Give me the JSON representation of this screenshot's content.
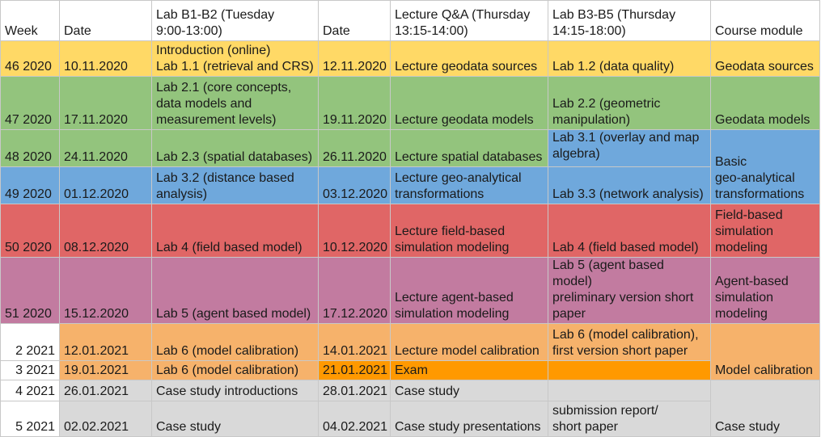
{
  "headers": {
    "week": "Week",
    "date1": "Date",
    "lab_b1b2": "Lab B1-B2 (Tuesday\n9:00-13:00)",
    "date2": "Date",
    "lecture": "Lecture Q&A (Thursday\n13:15-14:00)",
    "lab_b3b5": "Lab B3-B5 (Thursday\n14:15-18:00)",
    "module": "Course module"
  },
  "rows": [
    {
      "week": "46 2020",
      "date1": "10.11.2020",
      "lab_b1b2": "Introduction (online)\nLab 1.1 (retrieval and CRS)",
      "date2": "12.11.2020",
      "lecture": "Lecture geodata sources",
      "lab_b3b5": "Lab 1.2 (data quality)"
    },
    {
      "week": "47 2020",
      "date1": "17.11.2020",
      "lab_b1b2": "Lab 2.1 (core concepts,\ndata models and\nmeasurement levels)",
      "date2": "19.11.2020",
      "lecture": "Lecture geodata models",
      "lab_b3b5": "Lab 2.2 (geometric\nmanipulation)"
    },
    {
      "week": "48 2020",
      "date1": "24.11.2020",
      "lab_b1b2": "Lab 2.3 (spatial databases)",
      "date2": "26.11.2020",
      "lecture": "Lecture spatial databases",
      "lab_b3b5": "Lab 3.1 (overlay and map\nalgebra)"
    },
    {
      "week": "49 2020",
      "date1": "01.12.2020",
      "lab_b1b2": "Lab 3.2 (distance based\nanalysis)",
      "date2": "03.12.2020",
      "lecture": "Lecture geo-analytical\ntransformations",
      "lab_b3b5": "Lab 3.3 (network analysis)"
    },
    {
      "week": "50 2020",
      "date1": "08.12.2020",
      "lab_b1b2": "Lab 4 (field based model)",
      "date2": "10.12.2020",
      "lecture": "Lecture field-based\nsimulation modeling",
      "lab_b3b5": "Lab 4 (field based model)"
    },
    {
      "week": "51 2020",
      "date1": "15.12.2020",
      "lab_b1b2": "Lab 5 (agent based model)",
      "date2": "17.12.2020",
      "lecture": "Lecture agent-based\nsimulation modeling",
      "lab_b3b5": "Lab 5 (agent based model)\npreliminary version short\npaper"
    },
    {
      "week": "2 2021",
      "date1": "12.01.2021",
      "lab_b1b2": "Lab 6 (model calibration)",
      "date2": "14.01.2021",
      "lecture": "Lecture model calibration",
      "lab_b3b5": "Lab 6 (model calibration),\nfirst version short paper"
    },
    {
      "week": "3 2021",
      "date1": "19.01.2021",
      "lab_b1b2": "Lab 6 (model calibration)",
      "date2": "21.01.2021",
      "lecture": "Exam",
      "lab_b3b5": ""
    },
    {
      "week": "4 2021",
      "date1": "26.01.2021",
      "lab_b1b2": "Case study introductions",
      "date2": "28.01.2021",
      "lecture": "Case study",
      "lab_b3b5": ""
    },
    {
      "week": "5 2021",
      "date1": "02.02.2021",
      "lab_b1b2": "Case study",
      "date2": "04.02.2021",
      "lecture": "Case study presentations",
      "lab_b3b5": "submission report/\nshort paper"
    }
  ],
  "modules": {
    "geodata_sources": "Geodata sources",
    "geodata_models": "Geodata models",
    "basic_geo": "Basic\ngeo-analytical\ntransformations",
    "field_based": "Field-based\nsimulation\nmodeling",
    "agent_based": "Agent-based\nsimulation\nmodeling",
    "model_calibration": "Model calibration",
    "case_study": "Case study"
  },
  "colors": {
    "geodata_sources": "#ffd966",
    "geodata_models": "#93c47d",
    "geo_analytical": "#6fa8dc",
    "field_based": "#e06666",
    "agent_based": "#c27ba0",
    "model_calibration": "#f6b26b",
    "exam_highlight": "#ff9900",
    "case_study": "#d9d9d9"
  }
}
